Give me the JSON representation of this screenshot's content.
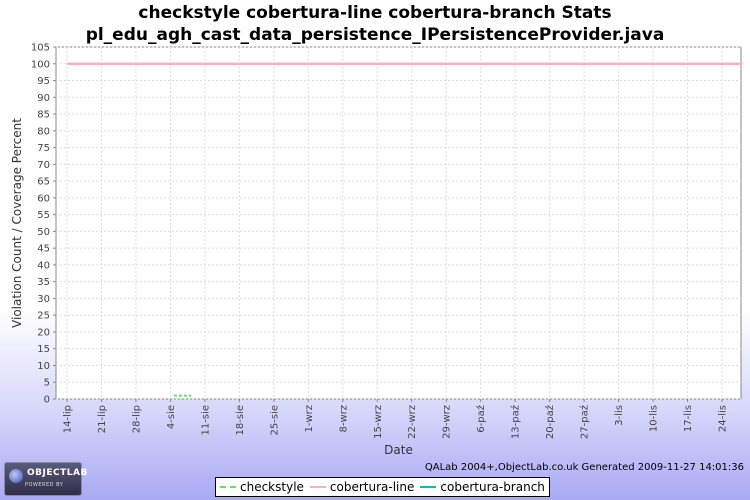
{
  "chart_data": {
    "type": "line",
    "title_lines": [
      "checkstyle cobertura-line cobertura-branch  Stats",
      "pl_edu_agh_cast_data_persistence_IPersistenceProvider.java"
    ],
    "xlabel": "Date",
    "ylabel": "Violation Count / Coverage Percent",
    "ylim": [
      0,
      105
    ],
    "yticks": [
      0,
      5,
      10,
      15,
      20,
      25,
      30,
      35,
      40,
      45,
      50,
      55,
      60,
      65,
      70,
      75,
      80,
      85,
      90,
      95,
      100,
      105
    ],
    "categories": [
      "14-lip",
      "21-lip",
      "28-lip",
      "4-sie",
      "11-sie",
      "18-sie",
      "25-sie",
      "1-wrz",
      "8-wrz",
      "15-wrz",
      "22-wrz",
      "29-wrz",
      "6-paź",
      "13-paź",
      "20-paź",
      "27-paź",
      "3-lis",
      "10-lis",
      "17-lis",
      "24-lis"
    ],
    "grid": true,
    "legend_position": "bottom",
    "series": [
      {
        "name": "checkstyle",
        "color": "#55ee55",
        "style": "dashed",
        "x": [
          3.1,
          3.6
        ],
        "values": [
          1,
          1
        ]
      },
      {
        "name": "cobertura-line",
        "color": "#f4b4c4",
        "style": "solid",
        "x": [
          0,
          19.6
        ],
        "values": [
          100,
          100
        ]
      },
      {
        "name": "cobertura-branch",
        "color": "#00c0c0",
        "style": "solid",
        "x": [],
        "values": []
      }
    ]
  },
  "footer": {
    "generated": "QALab 2004+,ObjectLab.co.uk Generated 2009-11-27 14:01:36"
  },
  "logo": {
    "name": "OBJECTLAB",
    "tagline": "POWERED BY"
  }
}
